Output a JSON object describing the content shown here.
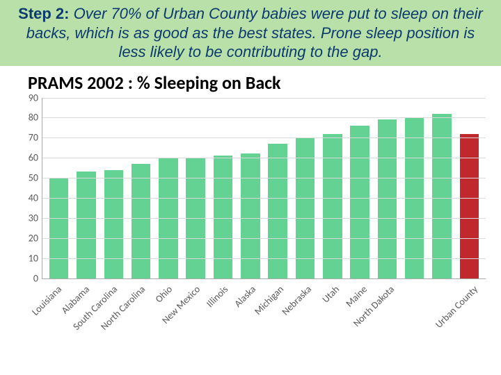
{
  "header": {
    "lead": "Step 2:",
    "text": "Over 70% of Urban County babies were put to sleep on their backs, which is as good as the best states. Prone sleep position is less likely to be contributing to the gap.",
    "background_color": "#b8e0a8",
    "text_color": "#0b3a6e",
    "lead_fontsize": 24,
    "body_fontsize": 22,
    "italic": true
  },
  "chart": {
    "type": "bar",
    "title": "PRAMS 2002 : % Sleeping on Back",
    "title_fontsize": 26,
    "title_fontweight": "bold",
    "title_color": "#000000",
    "background_color": "#ffffff",
    "grid_color": "#d9d9d9",
    "axis_color": "#a9a9a9",
    "tick_label_fontsize": 14,
    "tick_label_color": "#5a5a5a",
    "ylim": [
      0,
      90
    ],
    "ytick_step": 10,
    "bar_width": 0.7,
    "xlabel_rotation": -45,
    "categories": [
      "Louisiana",
      "Alabama",
      "South Carolina",
      "North Carolina",
      "Ohio",
      "New Mexico",
      "Illinois",
      "Alaska",
      "Michigan",
      "Nebraska",
      "Utah",
      "Maine",
      "North Dakota",
      "Urban County"
    ],
    "values": [
      50,
      53,
      54,
      57,
      60,
      60,
      61,
      62,
      67,
      70,
      72,
      76,
      79,
      80,
      82,
      72
    ],
    "extra_unlabeled_mid_bars": 2,
    "bar_colors": [
      "#63d293",
      "#63d293",
      "#63d293",
      "#63d293",
      "#63d293",
      "#63d293",
      "#63d293",
      "#63d293",
      "#63d293",
      "#63d293",
      "#63d293",
      "#63d293",
      "#63d293",
      "#63d293",
      "#63d293",
      "#c1282d"
    ]
  }
}
